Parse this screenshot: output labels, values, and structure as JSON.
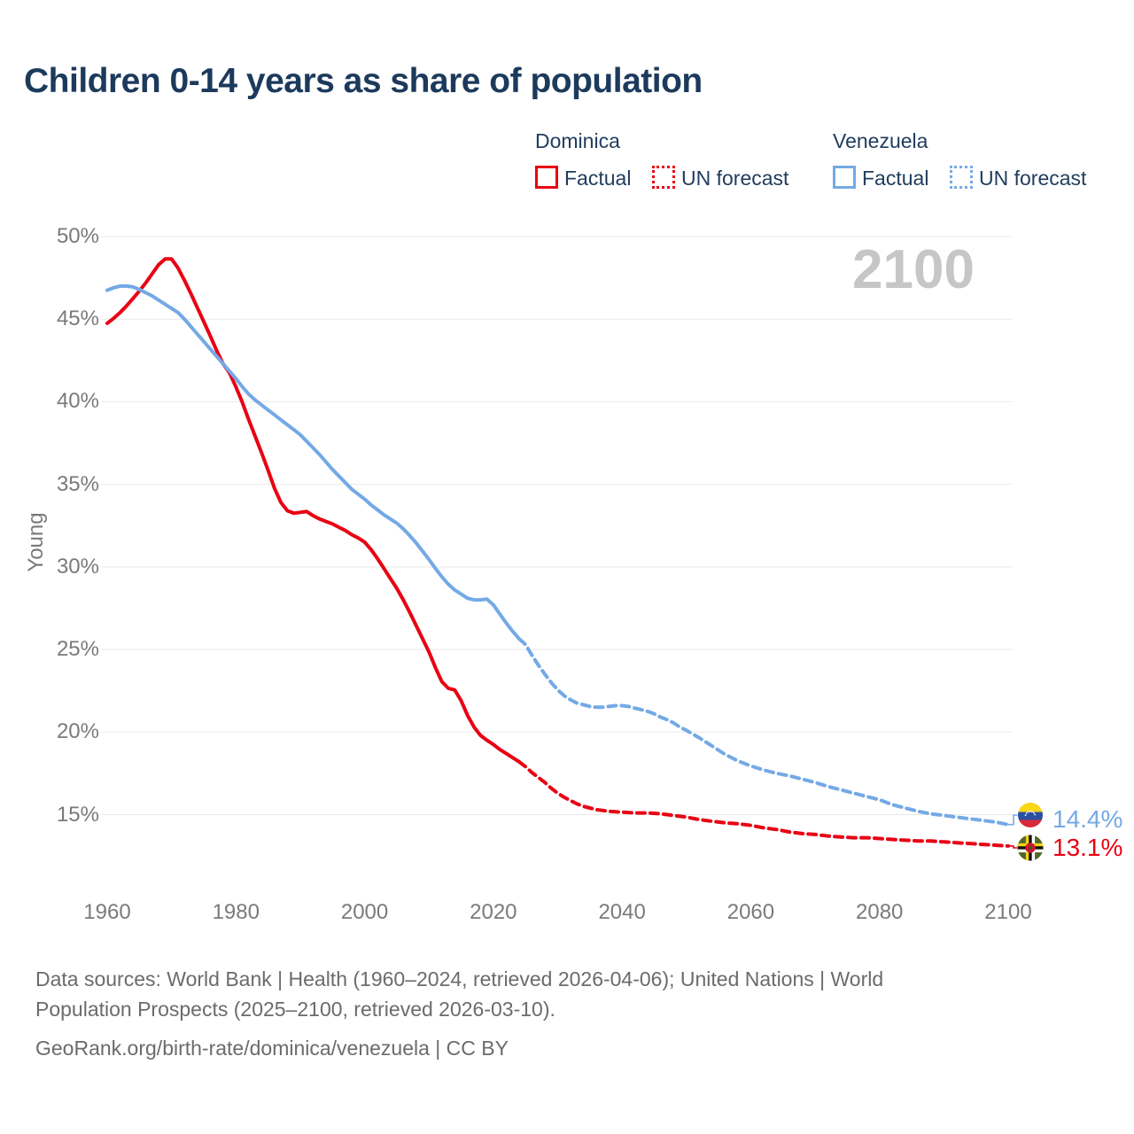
{
  "header": {
    "title": "Children 0-14 years as share of population"
  },
  "legend": {
    "groups": [
      {
        "country": "Dominica",
        "color": "#e90013",
        "items": [
          {
            "label": "Factual",
            "style": "solid"
          },
          {
            "label": "UN forecast",
            "style": "dotted"
          }
        ]
      },
      {
        "country": "Venezuela",
        "color": "#74a9e5",
        "items": [
          {
            "label": "Factual",
            "style": "solid"
          },
          {
            "label": "UN forecast",
            "style": "dotted"
          }
        ]
      }
    ]
  },
  "chart_data": {
    "type": "line",
    "title": "Children 0-14 years as share of population",
    "xlabel": "",
    "ylabel": "Young",
    "watermark": "2100",
    "grid": true,
    "grid_color": "#e9e9e9",
    "legend_position": "top-right",
    "xlim": [
      1960,
      2100
    ],
    "ylim": [
      12.5,
      51
    ],
    "y_axis": {
      "grid_values": [
        50,
        45,
        40,
        35,
        30,
        25,
        20,
        15
      ],
      "tick_labels": [
        "50%",
        "45%",
        "40%",
        "35%",
        "30%",
        "25%",
        "20%",
        "15%"
      ]
    },
    "x_axis": {
      "tick_years": [
        1960,
        1980,
        2000,
        2020,
        2040,
        2060,
        2080,
        2100
      ],
      "tick_labels": [
        "1960",
        "1980",
        "2000",
        "2020",
        "2040",
        "2060",
        "2080",
        "2100"
      ]
    },
    "series": [
      {
        "id": "dominica-factual",
        "name": "Dominica — Factual",
        "color": "#e90013",
        "style": "solid",
        "points": [
          [
            1960,
            44.75
          ],
          [
            1961,
            45.05
          ],
          [
            1962,
            45.4
          ],
          [
            1963,
            45.8
          ],
          [
            1964,
            46.25
          ],
          [
            1965,
            46.7
          ],
          [
            1966,
            47.2
          ],
          [
            1967,
            47.75
          ],
          [
            1968,
            48.3
          ],
          [
            1969,
            48.65
          ],
          [
            1970,
            48.65
          ],
          [
            1971,
            48.1
          ],
          [
            1972,
            47.35
          ],
          [
            1973,
            46.55
          ],
          [
            1974,
            45.7
          ],
          [
            1975,
            44.85
          ],
          [
            1976,
            44.0
          ],
          [
            1977,
            43.1
          ],
          [
            1978,
            42.3
          ],
          [
            1979,
            41.75
          ],
          [
            1980,
            40.9
          ],
          [
            1981,
            39.95
          ],
          [
            1982,
            38.9
          ],
          [
            1983,
            37.9
          ],
          [
            1984,
            36.9
          ],
          [
            1985,
            35.85
          ],
          [
            1986,
            34.75
          ],
          [
            1987,
            33.9
          ],
          [
            1988,
            33.4
          ],
          [
            1989,
            33.25
          ],
          [
            1990,
            33.3
          ],
          [
            1991,
            33.35
          ],
          [
            1992,
            33.1
          ],
          [
            1993,
            32.9
          ],
          [
            1994,
            32.75
          ],
          [
            1995,
            32.6
          ],
          [
            1996,
            32.4
          ],
          [
            1997,
            32.2
          ],
          [
            1998,
            31.95
          ],
          [
            1999,
            31.75
          ],
          [
            2000,
            31.5
          ],
          [
            2001,
            31.05
          ],
          [
            2002,
            30.5
          ],
          [
            2003,
            29.9
          ],
          [
            2004,
            29.3
          ],
          [
            2005,
            28.7
          ],
          [
            2006,
            28.0
          ],
          [
            2007,
            27.25
          ],
          [
            2008,
            26.45
          ],
          [
            2009,
            25.65
          ],
          [
            2010,
            24.85
          ],
          [
            2011,
            23.9
          ],
          [
            2012,
            23.05
          ],
          [
            2013,
            22.65
          ],
          [
            2014,
            22.55
          ],
          [
            2015,
            21.9
          ],
          [
            2016,
            21.0
          ],
          [
            2017,
            20.3
          ],
          [
            2018,
            19.8
          ],
          [
            2019,
            19.5
          ],
          [
            2020,
            19.25
          ],
          [
            2021,
            18.95
          ],
          [
            2022,
            18.7
          ],
          [
            2023,
            18.45
          ],
          [
            2024,
            18.2
          ]
        ]
      },
      {
        "id": "dominica-forecast",
        "name": "Dominica — UN forecast",
        "color": "#e90013",
        "style": "dashed",
        "points": [
          [
            2024,
            18.2
          ],
          [
            2025,
            17.9
          ],
          [
            2026,
            17.55
          ],
          [
            2027,
            17.25
          ],
          [
            2028,
            16.95
          ],
          [
            2029,
            16.6
          ],
          [
            2030,
            16.3
          ],
          [
            2031,
            16.05
          ],
          [
            2032,
            15.85
          ],
          [
            2033,
            15.65
          ],
          [
            2034,
            15.5
          ],
          [
            2035,
            15.4
          ],
          [
            2036,
            15.3
          ],
          [
            2038,
            15.2
          ],
          [
            2040,
            15.15
          ],
          [
            2042,
            15.1
          ],
          [
            2044,
            15.1
          ],
          [
            2046,
            15.05
          ],
          [
            2048,
            14.95
          ],
          [
            2050,
            14.85
          ],
          [
            2052,
            14.7
          ],
          [
            2054,
            14.6
          ],
          [
            2056,
            14.5
          ],
          [
            2058,
            14.45
          ],
          [
            2060,
            14.35
          ],
          [
            2062,
            14.2
          ],
          [
            2064,
            14.1
          ],
          [
            2066,
            13.95
          ],
          [
            2068,
            13.85
          ],
          [
            2070,
            13.8
          ],
          [
            2072,
            13.7
          ],
          [
            2074,
            13.65
          ],
          [
            2076,
            13.6
          ],
          [
            2078,
            13.6
          ],
          [
            2080,
            13.55
          ],
          [
            2082,
            13.5
          ],
          [
            2084,
            13.45
          ],
          [
            2086,
            13.4
          ],
          [
            2088,
            13.4
          ],
          [
            2090,
            13.35
          ],
          [
            2092,
            13.3
          ],
          [
            2094,
            13.25
          ],
          [
            2096,
            13.2
          ],
          [
            2098,
            13.15
          ],
          [
            2100,
            13.1
          ]
        ]
      },
      {
        "id": "venezuela-factual",
        "name": "Venezuela — Factual",
        "color": "#74a9e5",
        "style": "solid",
        "points": [
          [
            1960,
            46.75
          ],
          [
            1961,
            46.9
          ],
          [
            1962,
            47.0
          ],
          [
            1963,
            47.0
          ],
          [
            1964,
            46.95
          ],
          [
            1965,
            46.8
          ],
          [
            1966,
            46.6
          ],
          [
            1967,
            46.4
          ],
          [
            1968,
            46.15
          ],
          [
            1969,
            45.9
          ],
          [
            1970,
            45.65
          ],
          [
            1971,
            45.4
          ],
          [
            1972,
            45.0
          ],
          [
            1973,
            44.55
          ],
          [
            1974,
            44.1
          ],
          [
            1975,
            43.65
          ],
          [
            1976,
            43.2
          ],
          [
            1977,
            42.75
          ],
          [
            1978,
            42.3
          ],
          [
            1979,
            41.85
          ],
          [
            1980,
            41.4
          ],
          [
            1981,
            40.9
          ],
          [
            1982,
            40.45
          ],
          [
            1983,
            40.1
          ],
          [
            1984,
            39.8
          ],
          [
            1985,
            39.5
          ],
          [
            1986,
            39.2
          ],
          [
            1987,
            38.9
          ],
          [
            1988,
            38.6
          ],
          [
            1989,
            38.3
          ],
          [
            1990,
            38.0
          ],
          [
            1991,
            37.6
          ],
          [
            1992,
            37.2
          ],
          [
            1993,
            36.8
          ],
          [
            1994,
            36.35
          ],
          [
            1995,
            35.9
          ],
          [
            1996,
            35.5
          ],
          [
            1997,
            35.1
          ],
          [
            1998,
            34.7
          ],
          [
            1999,
            34.4
          ],
          [
            2000,
            34.1
          ],
          [
            2001,
            33.75
          ],
          [
            2002,
            33.45
          ],
          [
            2003,
            33.15
          ],
          [
            2004,
            32.9
          ],
          [
            2005,
            32.65
          ],
          [
            2006,
            32.3
          ],
          [
            2007,
            31.9
          ],
          [
            2008,
            31.45
          ],
          [
            2009,
            30.95
          ],
          [
            2010,
            30.45
          ],
          [
            2011,
            29.9
          ],
          [
            2012,
            29.4
          ],
          [
            2013,
            28.95
          ],
          [
            2014,
            28.6
          ],
          [
            2015,
            28.35
          ],
          [
            2016,
            28.1
          ],
          [
            2017,
            28.0
          ],
          [
            2018,
            28.0
          ],
          [
            2019,
            28.05
          ],
          [
            2020,
            27.7
          ],
          [
            2021,
            27.15
          ],
          [
            2022,
            26.6
          ],
          [
            2023,
            26.1
          ],
          [
            2024,
            25.65
          ]
        ]
      },
      {
        "id": "venezuela-forecast",
        "name": "Venezuela — UN forecast",
        "color": "#74a9e5",
        "style": "dashed",
        "points": [
          [
            2024,
            25.65
          ],
          [
            2025,
            25.3
          ],
          [
            2026,
            24.65
          ],
          [
            2027,
            24.05
          ],
          [
            2028,
            23.5
          ],
          [
            2029,
            23.0
          ],
          [
            2030,
            22.55
          ],
          [
            2031,
            22.2
          ],
          [
            2032,
            21.95
          ],
          [
            2033,
            21.75
          ],
          [
            2034,
            21.65
          ],
          [
            2035,
            21.55
          ],
          [
            2036,
            21.5
          ],
          [
            2037,
            21.5
          ],
          [
            2038,
            21.55
          ],
          [
            2039,
            21.6
          ],
          [
            2040,
            21.6
          ],
          [
            2041,
            21.55
          ],
          [
            2042,
            21.45
          ],
          [
            2043,
            21.35
          ],
          [
            2044,
            21.25
          ],
          [
            2045,
            21.1
          ],
          [
            2046,
            20.9
          ],
          [
            2047,
            20.75
          ],
          [
            2048,
            20.55
          ],
          [
            2049,
            20.3
          ],
          [
            2050,
            20.1
          ],
          [
            2052,
            19.65
          ],
          [
            2054,
            19.15
          ],
          [
            2056,
            18.65
          ],
          [
            2058,
            18.25
          ],
          [
            2060,
            17.95
          ],
          [
            2062,
            17.7
          ],
          [
            2064,
            17.5
          ],
          [
            2066,
            17.35
          ],
          [
            2068,
            17.15
          ],
          [
            2070,
            16.95
          ],
          [
            2072,
            16.7
          ],
          [
            2074,
            16.5
          ],
          [
            2076,
            16.3
          ],
          [
            2078,
            16.1
          ],
          [
            2080,
            15.9
          ],
          [
            2082,
            15.6
          ],
          [
            2084,
            15.4
          ],
          [
            2086,
            15.2
          ],
          [
            2088,
            15.05
          ],
          [
            2090,
            14.95
          ],
          [
            2092,
            14.85
          ],
          [
            2094,
            14.75
          ],
          [
            2096,
            14.65
          ],
          [
            2098,
            14.55
          ],
          [
            2100,
            14.4
          ]
        ]
      }
    ],
    "end_labels": [
      {
        "country": "Venezuela",
        "value": "14.4%",
        "color": "#74a9e5",
        "flag": "venezuela"
      },
      {
        "country": "Dominica",
        "value": "13.1%",
        "color": "#e90013",
        "flag": "dominica"
      }
    ]
  },
  "footer": {
    "line1": "Data sources: World Bank | Health (1960–2024, retrieved 2026-04-06); United Nations | World",
    "line2": "Population Prospects (2025–2100, retrieved 2026-03-10).",
    "line3": "GeoRank.org/birth-rate/dominica/venezuela | CC BY"
  }
}
